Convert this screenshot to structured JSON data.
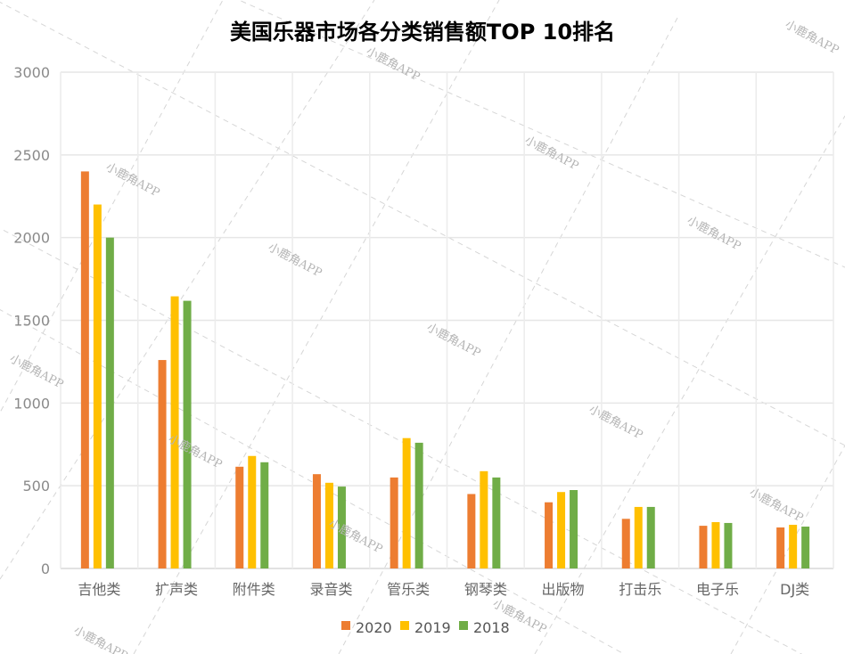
{
  "chart_data": {
    "type": "bar",
    "title": "美国乐器市场各分类销售额TOP 10排名",
    "xlabel": "",
    "ylabel": "",
    "ylim": [
      0,
      3000
    ],
    "yticks": [
      0,
      500,
      1000,
      1500,
      2000,
      2500,
      3000
    ],
    "grid": true,
    "legend_position": "bottom",
    "categories": [
      "吉他类",
      "扩声类",
      "附件类",
      "录音类",
      "管乐类",
      "钢琴类",
      "出版物",
      "打击乐",
      "电子乐",
      "DJ类"
    ],
    "series": [
      {
        "name": "2020",
        "color": "#ED7D31",
        "values": [
          2400,
          1260,
          615,
          570,
          550,
          450,
          400,
          300,
          258,
          248
        ]
      },
      {
        "name": "2019",
        "color": "#FFC000",
        "values": [
          2200,
          1645,
          680,
          518,
          788,
          588,
          462,
          372,
          280,
          264
        ]
      },
      {
        "name": "2018",
        "color": "#70AD47",
        "values": [
          2000,
          1618,
          642,
          495,
          760,
          550,
          474,
          372,
          275,
          253
        ]
      }
    ]
  },
  "watermark": "小鹿角APP"
}
